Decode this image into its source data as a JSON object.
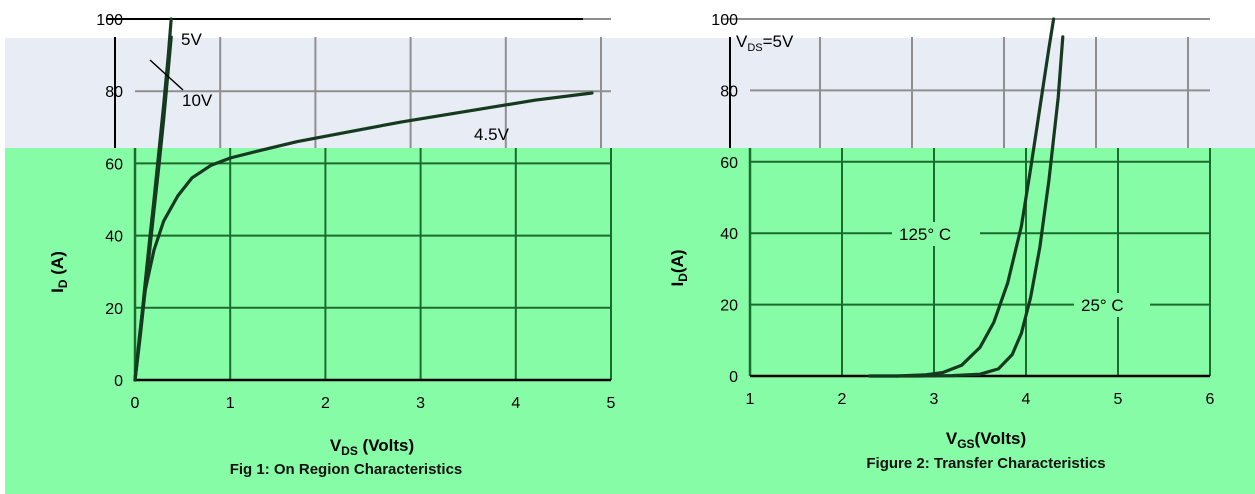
{
  "colors": {
    "page_background": "#ffffff",
    "band_top": "#e8ecf4",
    "plot_green": "#87fca6",
    "grid_dark": "#1b6b2c",
    "grid_gray": "#8f8f8f",
    "curve": "#163a1f"
  },
  "chart_data": [
    {
      "type": "line",
      "title": "Fig 1: On Region Characteristics",
      "xlabel_main": "V",
      "xlabel_sub": "DS",
      "xlabel_tail": " (Volts)",
      "ylabel_main": "I",
      "ylabel_sub": "D",
      "ylabel_tail": " (A)",
      "xlim": [
        0,
        5
      ],
      "ylim": [
        0,
        100
      ],
      "x_ticks": [
        "0",
        "1",
        "2",
        "3",
        "4",
        "5"
      ],
      "y_ticks": [
        "0",
        "20",
        "40",
        "60",
        "80",
        "100"
      ],
      "grid": true,
      "annotations": [
        "5V",
        "10V",
        "4.5V"
      ],
      "series": [
        {
          "name": "10V",
          "x": [
            0,
            0.05,
            0.1,
            0.15,
            0.2,
            0.25,
            0.3,
            0.35,
            0.38
          ],
          "y": [
            0,
            12,
            25,
            38,
            50,
            63,
            76,
            90,
            100
          ]
        },
        {
          "name": "5V",
          "x": [
            0,
            0.05,
            0.1,
            0.15,
            0.2,
            0.25,
            0.3,
            0.35,
            0.38
          ],
          "y": [
            0,
            11,
            23,
            35,
            47,
            59,
            72,
            86,
            95
          ]
        },
        {
          "name": "4.5V",
          "x": [
            0,
            0.05,
            0.1,
            0.2,
            0.3,
            0.45,
            0.6,
            0.8,
            1.0,
            1.3,
            1.7,
            2.2,
            2.8,
            3.5,
            4.2,
            4.8
          ],
          "y": [
            0,
            13,
            24,
            36,
            44,
            51,
            56,
            59.5,
            61.5,
            63.5,
            66,
            68.5,
            71.5,
            74.5,
            77.5,
            79.5
          ]
        }
      ]
    },
    {
      "type": "line",
      "title": "Figure 2: Transfer Characteristics",
      "xlabel_main": "V",
      "xlabel_sub": "GS",
      "xlabel_tail": "(Volts)",
      "ylabel_main": "I",
      "ylabel_sub": "D",
      "ylabel_tail": "(A)",
      "xlim": [
        1,
        6
      ],
      "ylim": [
        0,
        100
      ],
      "x_ticks": [
        "1",
        "2",
        "3",
        "4",
        "5",
        "6"
      ],
      "y_ticks": [
        "0",
        "20",
        "40",
        "60",
        "80",
        "100"
      ],
      "grid": true,
      "legend_text_main": "V",
      "legend_text_sub": "DS",
      "legend_text_tail": "=5V",
      "annotations": [
        "125° C",
        "25° C"
      ],
      "series": [
        {
          "name": "125° C",
          "x": [
            2.3,
            2.6,
            2.9,
            3.1,
            3.3,
            3.5,
            3.65,
            3.8,
            3.95,
            4.05,
            4.15,
            4.25,
            4.3
          ],
          "y": [
            0,
            0,
            0.3,
            1,
            3,
            8,
            15,
            26,
            42,
            58,
            75,
            92,
            100
          ]
        },
        {
          "name": "25° C",
          "x": [
            2.3,
            2.8,
            3.2,
            3.5,
            3.7,
            3.85,
            3.95,
            4.05,
            4.15,
            4.25,
            4.35,
            4.4
          ],
          "y": [
            0,
            0,
            0.1,
            0.5,
            2,
            6,
            12,
            22,
            36,
            55,
            78,
            95
          ]
        }
      ]
    }
  ]
}
